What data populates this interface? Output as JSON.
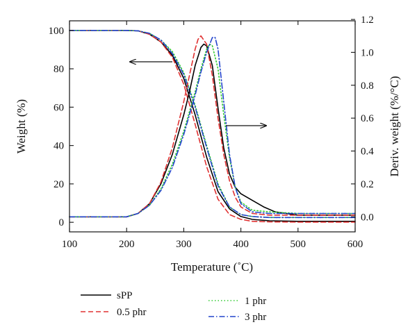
{
  "chart_data": {
    "type": "line",
    "title": "",
    "xlabel": "Temperature (˚C)",
    "ylabel_left": "Weight (%)",
    "ylabel_right": "Deriv. weight (%/°C)",
    "xlim": [
      100,
      600
    ],
    "ylim_left": [
      -5,
      105
    ],
    "ylim_right": [
      -0.0917,
      1.1917
    ],
    "x_ticks": [
      100,
      200,
      300,
      400,
      500,
      600
    ],
    "y_left_ticks": [
      0,
      20,
      40,
      60,
      80,
      100
    ],
    "y_right_ticks": [
      0.0,
      0.2,
      0.4,
      0.6,
      0.8,
      1.0,
      1.2
    ],
    "y_right_tick_labels": [
      "0.0",
      "0.2",
      "0.4",
      "0.6",
      "0.8",
      "1.0",
      "1.2"
    ],
    "grid": false,
    "legend_placement": "below-plot",
    "series": [
      {
        "name": "sPP",
        "color": "#000000",
        "dash": "solid",
        "axis": "left",
        "kind": "weight",
        "x": [
          100,
          200,
          220,
          240,
          260,
          280,
          300,
          320,
          340,
          360,
          380,
          400,
          420,
          450,
          500,
          600
        ],
        "y": [
          100,
          100,
          99.8,
          98,
          94,
          87,
          75,
          56,
          34,
          16,
          7,
          3,
          1.5,
          0.8,
          0.5,
          0.5
        ]
      },
      {
        "name": "0.5 phr",
        "color": "#e03030",
        "dash": "dashed",
        "axis": "left",
        "kind": "weight",
        "x": [
          100,
          200,
          220,
          240,
          260,
          280,
          300,
          320,
          340,
          360,
          380,
          400,
          420,
          450,
          500,
          600
        ],
        "y": [
          100,
          100,
          99.8,
          98,
          94,
          86,
          72,
          51,
          29,
          12,
          4,
          1.5,
          0.5,
          0.2,
          0.1,
          0.1
        ]
      },
      {
        "name": "1 phr",
        "color": "#33cc33",
        "dash": "dotted",
        "axis": "left",
        "kind": "weight",
        "x": [
          100,
          200,
          220,
          240,
          260,
          280,
          300,
          320,
          340,
          360,
          380,
          400,
          420,
          450,
          500,
          600
        ],
        "y": [
          100,
          100,
          99.8,
          98.5,
          95,
          89,
          78,
          61,
          40,
          20,
          8,
          4,
          3,
          2.5,
          2.5,
          2.5
        ]
      },
      {
        "name": "3 phr",
        "color": "#2244cc",
        "dash": "dashdot",
        "axis": "left",
        "kind": "weight",
        "x": [
          100,
          200,
          220,
          240,
          260,
          280,
          300,
          320,
          340,
          360,
          380,
          400,
          420,
          450,
          500,
          600
        ],
        "y": [
          100,
          100,
          99.8,
          98.5,
          95,
          88,
          77,
          60,
          39,
          19,
          8,
          4,
          3,
          2.5,
          2.5,
          2.5
        ]
      },
      {
        "name": "sPP",
        "color": "#000000",
        "dash": "solid",
        "axis": "right",
        "kind": "derivative",
        "x": [
          100,
          200,
          220,
          240,
          260,
          280,
          300,
          310,
          320,
          330,
          335,
          340,
          350,
          360,
          370,
          380,
          390,
          400,
          420,
          440,
          460,
          500,
          600
        ],
        "y": [
          0,
          0,
          0.02,
          0.08,
          0.2,
          0.38,
          0.62,
          0.76,
          0.92,
          1.03,
          1.05,
          1.04,
          0.92,
          0.66,
          0.42,
          0.26,
          0.18,
          0.14,
          0.1,
          0.06,
          0.03,
          0.01,
          0.01
        ]
      },
      {
        "name": "0.5 phr",
        "color": "#e03030",
        "dash": "dashed",
        "axis": "right",
        "kind": "derivative",
        "x": [
          100,
          200,
          220,
          240,
          260,
          280,
          300,
          310,
          320,
          325,
          330,
          340,
          350,
          360,
          370,
          380,
          390,
          400,
          420,
          450,
          500,
          600
        ],
        "y": [
          0,
          0,
          0.02,
          0.08,
          0.21,
          0.42,
          0.7,
          0.86,
          1.02,
          1.08,
          1.1,
          1.05,
          0.86,
          0.6,
          0.38,
          0.22,
          0.12,
          0.06,
          0.02,
          0.01,
          0.01,
          0.01
        ]
      },
      {
        "name": "1 phr",
        "color": "#33cc33",
        "dash": "dotted",
        "axis": "right",
        "kind": "derivative",
        "x": [
          100,
          200,
          220,
          240,
          260,
          280,
          300,
          320,
          330,
          340,
          345,
          350,
          360,
          370,
          380,
          390,
          400,
          420,
          450,
          500,
          600
        ],
        "y": [
          0,
          0,
          0.02,
          0.07,
          0.17,
          0.32,
          0.52,
          0.76,
          0.9,
          1.02,
          1.05,
          1.04,
          0.9,
          0.62,
          0.36,
          0.18,
          0.09,
          0.04,
          0.03,
          0.02,
          0.02
        ]
      },
      {
        "name": "3 phr",
        "color": "#2244cc",
        "dash": "dashdot",
        "axis": "right",
        "kind": "derivative",
        "x": [
          100,
          200,
          220,
          240,
          260,
          280,
          300,
          320,
          330,
          340,
          350,
          355,
          360,
          370,
          380,
          390,
          400,
          420,
          450,
          500,
          600
        ],
        "y": [
          0,
          0,
          0.02,
          0.07,
          0.16,
          0.3,
          0.5,
          0.74,
          0.88,
          1.0,
          1.09,
          1.09,
          1.02,
          0.7,
          0.38,
          0.18,
          0.08,
          0.03,
          0.02,
          0.02,
          0.02
        ]
      }
    ],
    "legend": [
      {
        "label": "sPP",
        "color": "#000000",
        "dash": "solid"
      },
      {
        "label": "0.5 phr",
        "color": "#e03030",
        "dash": "dashed"
      },
      {
        "label": "1 phr",
        "color": "#33cc33",
        "dash": "dotted"
      },
      {
        "label": "3 phr",
        "color": "#2244cc",
        "dash": "dashdot"
      }
    ]
  }
}
